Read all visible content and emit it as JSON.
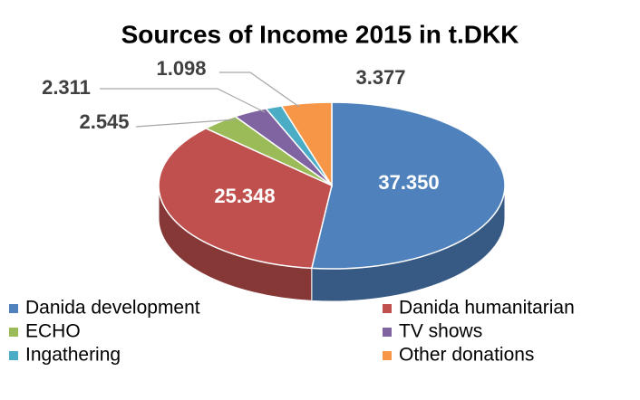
{
  "chart_data": {
    "type": "pie",
    "title": "Sources of Income 2015 in t.DKK",
    "categories": [
      "Danida development",
      "Danida humanitarian",
      "ECHO",
      "TV shows",
      "Ingathering",
      "Other donations"
    ],
    "values": [
      37350,
      25348,
      2545,
      2311,
      1098,
      3377
    ],
    "value_labels": [
      "37.350",
      "25.348",
      "2.545",
      "2.311",
      "1.098",
      "3.377"
    ],
    "colors": [
      "#4f81bd",
      "#c0504d",
      "#9bbb59",
      "#8064a2",
      "#4bacc6",
      "#f79646"
    ],
    "legend": "bottom"
  }
}
